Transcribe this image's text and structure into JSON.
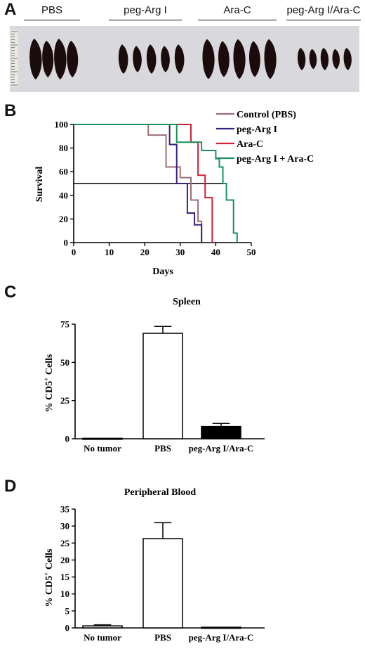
{
  "panels": {
    "a": "A",
    "b": "B",
    "c": "C",
    "d": "D"
  },
  "photo": {
    "groups": [
      "PBS",
      "peg-Arg I",
      "Ara-C",
      "peg-Arg I/Ara-C"
    ],
    "spleen_counts": [
      4,
      5,
      5,
      5
    ]
  },
  "chart_data": [
    {
      "type": "line",
      "step": true,
      "xlabel": "Days",
      "ylabel": "Survival",
      "xlim": [
        0,
        50
      ],
      "ylim": [
        0,
        100
      ],
      "xticks": [
        0,
        10,
        20,
        30,
        40,
        50
      ],
      "yticks": [
        0,
        20,
        40,
        60,
        80,
        100
      ],
      "reference_line": {
        "y": 50
      },
      "legend_position": "top-right",
      "series": [
        {
          "name": "Control (PBS)",
          "color": "#9b6f73",
          "x": [
            0,
            21,
            26,
            30,
            33,
            35,
            36
          ],
          "y": [
            100,
            91,
            64,
            55,
            36,
            18,
            0
          ]
        },
        {
          "name": "peg-Arg I",
          "color": "#3a2185",
          "x": [
            0,
            27,
            29,
            32,
            34,
            36
          ],
          "y": [
            100,
            83,
            50,
            25,
            15,
            0
          ]
        },
        {
          "name": "Ara-C",
          "color": "#d21f35",
          "x": [
            0,
            33,
            35,
            37,
            39
          ],
          "y": [
            100,
            85,
            57,
            38,
            0
          ]
        },
        {
          "name": "peg-Arg I + Ara-C",
          "color": "#16915e",
          "x": [
            0,
            29,
            34,
            36,
            40,
            41,
            42,
            43,
            45,
            46
          ],
          "y": [
            100,
            85,
            85,
            78,
            71,
            64,
            50,
            36,
            8,
            0
          ]
        }
      ]
    },
    {
      "type": "bar",
      "title": "Spleen",
      "ylabel_main": "% CD5",
      "ylabel_sup": "+",
      "ylabel_end": " Cells",
      "categories": [
        "No tumor",
        "PBS",
        "peg-Arg I/Ara-C"
      ],
      "values": [
        0.3,
        69,
        8
      ],
      "errors": [
        0,
        4.5,
        2
      ],
      "fills": [
        "#ffffff",
        "#ffffff",
        "#000000"
      ],
      "ylim": [
        0,
        75
      ],
      "yticks": [
        0,
        25,
        50,
        75
      ]
    },
    {
      "type": "bar",
      "title": "Peripheral Blood",
      "ylabel_main": "% CD5",
      "ylabel_sup": "+",
      "ylabel_end": " Cells",
      "categories": [
        "No tumor",
        "PBS",
        "peg-Arg I/Ara-C"
      ],
      "values": [
        0.6,
        26.3,
        0.2
      ],
      "errors": [
        0.3,
        4.7,
        0
      ],
      "fills": [
        "#ffffff",
        "#ffffff",
        "#ffffff"
      ],
      "ylim": [
        0,
        35
      ],
      "yticks": [
        0,
        5,
        10,
        15,
        20,
        25,
        30,
        35
      ]
    }
  ]
}
